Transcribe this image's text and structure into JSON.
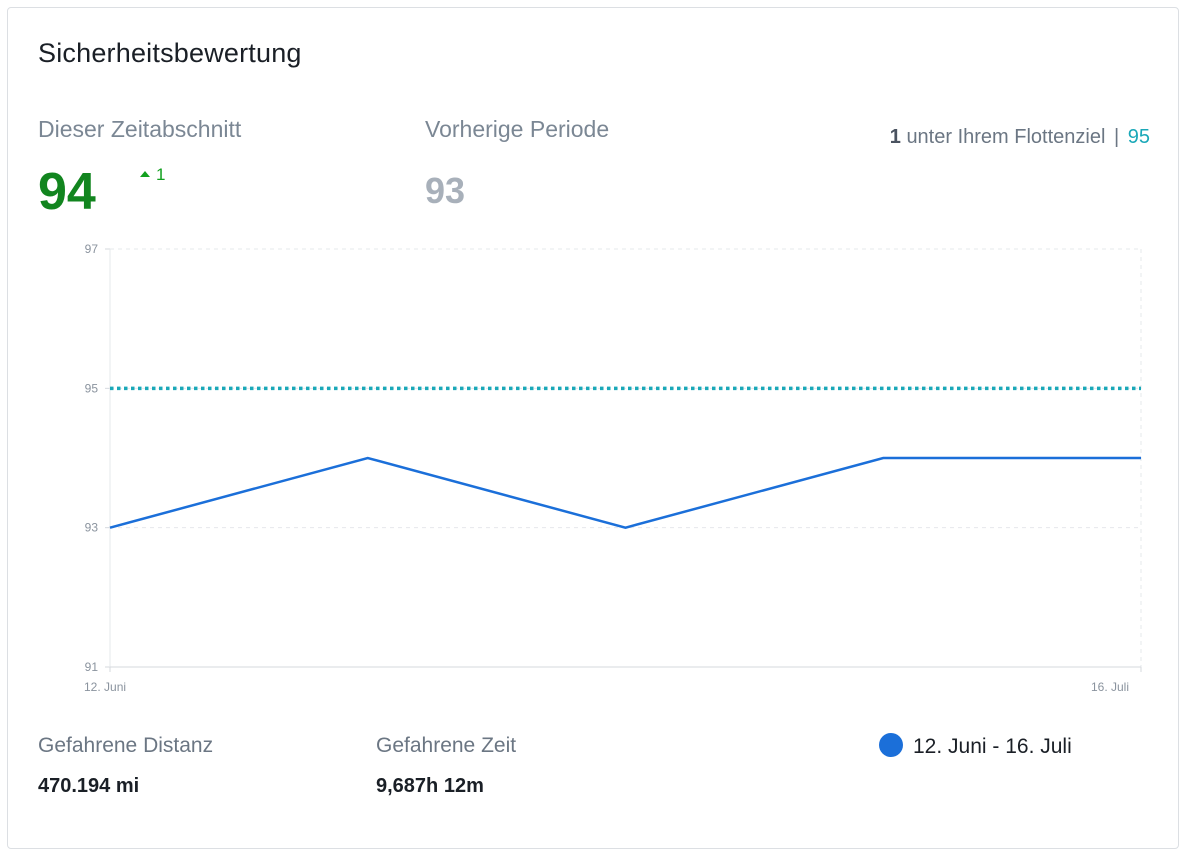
{
  "card": {
    "title": "Sicherheitsbewertung"
  },
  "metrics": {
    "current_label": "Dieser Zeitabschnitt",
    "current_value": "94",
    "delta": "1",
    "previous_label": "Vorherige Periode",
    "previous_value": "93",
    "target_gap": "1",
    "target_text": "unter Ihrem Flottenziel",
    "target_separator": "|",
    "target_value": "95"
  },
  "colors": {
    "current": "#12851f",
    "delta": "#12a01f",
    "previous": "#a8b0ba",
    "series": "#1b6fd9",
    "target_line": "#1aa8b8"
  },
  "chart_data": {
    "type": "line",
    "x": [
      "12. Juni",
      "",
      "",
      "",
      "16. Juli"
    ],
    "x_tick_labels": [
      "12. Juni",
      "16. Juli"
    ],
    "series": [
      {
        "name": "12. Juni - 16. Juli",
        "values": [
          93,
          94,
          93,
          94,
          94
        ]
      }
    ],
    "reference_line": {
      "value": 95,
      "style": "dotted"
    },
    "y_ticks": [
      97,
      95,
      93,
      91
    ],
    "ylim": [
      91,
      97
    ],
    "grid": true,
    "legend_placement": "bottom-right"
  },
  "footer": {
    "distance_label": "Gefahrene Distanz",
    "distance_value": "470.194 mi",
    "time_label": "Gefahrene Zeit",
    "time_value": "9,687h 12m",
    "legend_label": "12. Juni - 16. Juli"
  }
}
